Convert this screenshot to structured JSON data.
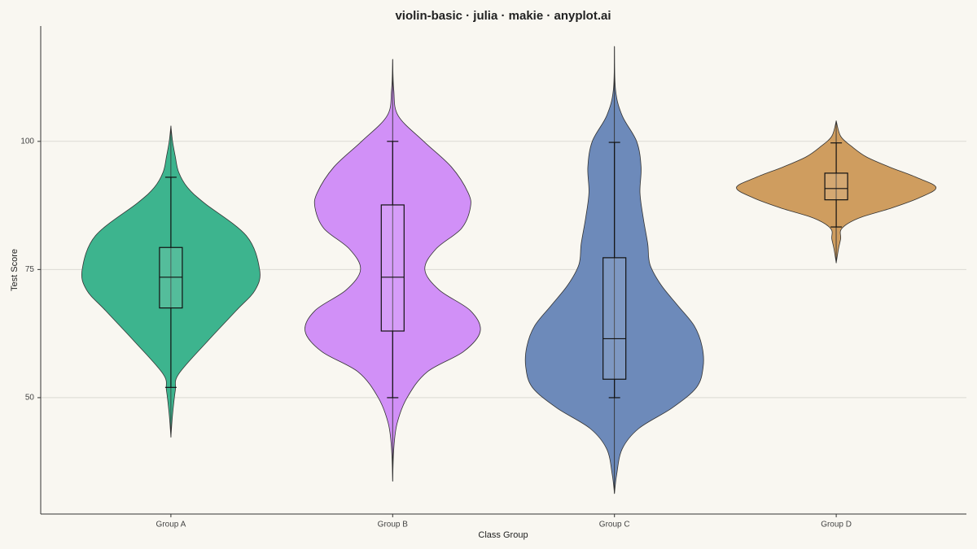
{
  "chart_data": {
    "type": "violin",
    "title": "violin-basic · julia · makie · anyplot.ai",
    "x_label": "Class Group",
    "y_label": "Test Score",
    "ylim": [
      27.3,
      122.5
    ],
    "yticks": [
      50,
      75,
      100
    ],
    "grid": true,
    "groups": [
      {
        "name": "Group A",
        "color": "#3db48e",
        "box": {
          "whisker_low": 52,
          "q1": 67.5,
          "median": 73.5,
          "q3": 79.3,
          "whisker_high": 93
        },
        "violin": {
          "y": [
            103,
            100,
            97,
            94,
            91,
            88,
            81.6,
            75,
            71,
            67,
            61,
            54.6,
            51.4,
            46.7,
            42.3
          ],
          "width": [
            0,
            0.015,
            0.04,
            0.07,
            0.15,
            0.3,
            0.68,
            0.8,
            0.76,
            0.59,
            0.33,
            0.07,
            0.04,
            0.015,
            0
          ]
        }
      },
      {
        "name": "Group B",
        "color": "#d190f7",
        "box": {
          "whisker_low": 50,
          "q1": 63,
          "median": 73.5,
          "q3": 87.6,
          "whisker_high": 100
        },
        "violin": {
          "y": [
            116,
            110,
            105,
            100,
            95,
            90,
            87,
            83,
            79,
            75,
            71,
            67,
            63,
            59,
            55,
            50,
            45,
            40,
            33.7
          ],
          "width": [
            0,
            0.01,
            0.05,
            0.28,
            0.53,
            0.68,
            0.7,
            0.62,
            0.39,
            0.29,
            0.42,
            0.7,
            0.79,
            0.64,
            0.31,
            0.13,
            0.04,
            0.01,
            0
          ]
        }
      },
      {
        "name": "Group C",
        "color": "#6d8aba",
        "box": {
          "whisker_low": 50,
          "q1": 53.6,
          "median": 61.5,
          "q3": 77.3,
          "whisker_high": 99.8
        },
        "violin": {
          "y": [
            118.5,
            110,
            105,
            100,
            95,
            90,
            85,
            80,
            76,
            72,
            68,
            64,
            60,
            56,
            52,
            48,
            44,
            40,
            35,
            31.3
          ],
          "width": [
            0,
            0.01,
            0.07,
            0.2,
            0.24,
            0.23,
            0.26,
            0.3,
            0.32,
            0.42,
            0.57,
            0.72,
            0.79,
            0.8,
            0.74,
            0.52,
            0.22,
            0.07,
            0.02,
            0
          ]
        }
      },
      {
        "name": "Group D",
        "color": "#cf9d5f",
        "box": {
          "whisker_low": 83.3,
          "q1": 88.6,
          "median": 90.8,
          "q3": 93.8,
          "whisker_high": 99.7
        },
        "violin": {
          "y": [
            104,
            101,
            99,
            97,
            95,
            93,
            91,
            89,
            87,
            85,
            83,
            81,
            79,
            76.3
          ],
          "width": [
            0,
            0.04,
            0.14,
            0.27,
            0.48,
            0.72,
            0.9,
            0.75,
            0.5,
            0.2,
            0.05,
            0.04,
            0.02,
            0
          ]
        }
      }
    ]
  }
}
